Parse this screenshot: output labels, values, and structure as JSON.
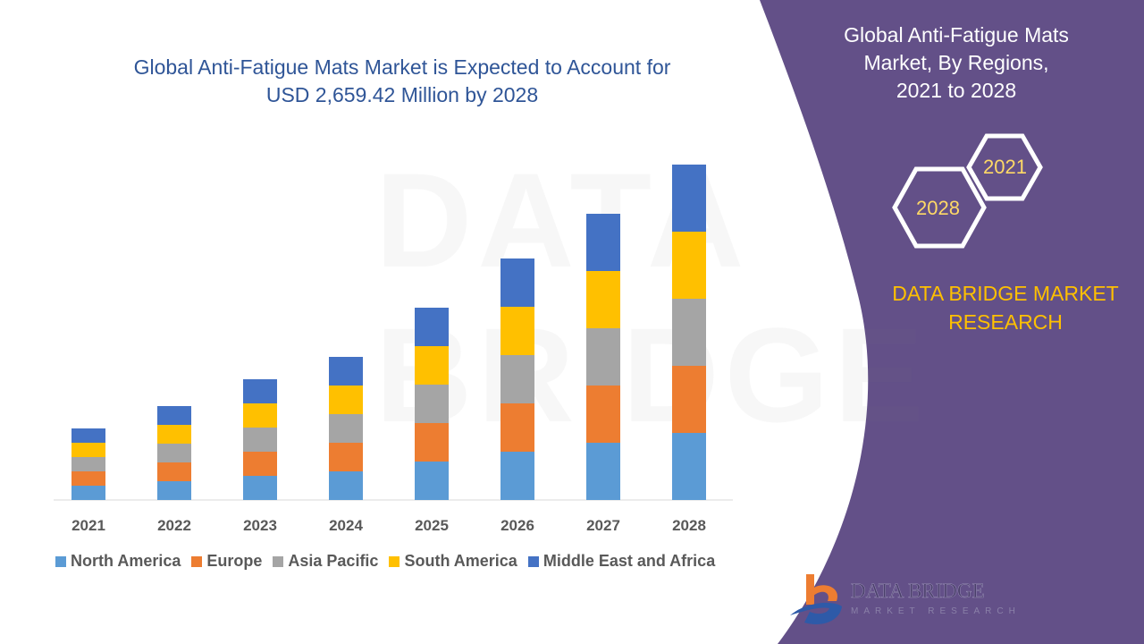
{
  "title": "Global Anti-Fatigue Mats Market is Expected to Account for USD 2,659.42 Million by 2028",
  "title_line1": "Global Anti-Fatigue Mats Market is Expected to Account for",
  "title_line2": "USD 2,659.42 Million by 2028",
  "side_panel": {
    "title_line1": "Global Anti-Fatigue Mats",
    "title_line2": "Market, By Regions,",
    "title_line3": "2021 to 2028",
    "hex_start": "2021",
    "hex_end": "2028",
    "brand_line1": "DATA BRIDGE MARKET",
    "brand_line2": "RESEARCH",
    "logo_main": "DATA BRIDGE",
    "logo_sub": "MARKET RESEARCH",
    "background_color": "#635088"
  },
  "watermark": "DATA BRIDGE",
  "chart_data": {
    "type": "stacked-bar",
    "categories": [
      "2021",
      "2022",
      "2023",
      "2024",
      "2025",
      "2026",
      "2027",
      "2028"
    ],
    "series": [
      {
        "name": "North America",
        "color": "#5b9bd5",
        "values": [
          16,
          21,
          27,
          32,
          43,
          54,
          64,
          75
        ]
      },
      {
        "name": "Europe",
        "color": "#ed7d31",
        "values": [
          16,
          21,
          27,
          32,
          43,
          54,
          64,
          75
        ]
      },
      {
        "name": "Asia Pacific",
        "color": "#a5a5a5",
        "values": [
          16,
          21,
          27,
          32,
          43,
          54,
          64,
          75
        ]
      },
      {
        "name": "South America",
        "color": "#ffc000",
        "values": [
          16,
          21,
          27,
          32,
          43,
          54,
          64,
          75
        ]
      },
      {
        "name": "Middle East and Africa",
        "color": "#4472c4",
        "values": [
          16,
          21,
          27,
          32,
          43,
          54,
          64,
          75
        ]
      }
    ],
    "ylim": [
      0,
      375
    ],
    "y_axis_visible": false,
    "grid": false,
    "legend_position": "bottom"
  }
}
